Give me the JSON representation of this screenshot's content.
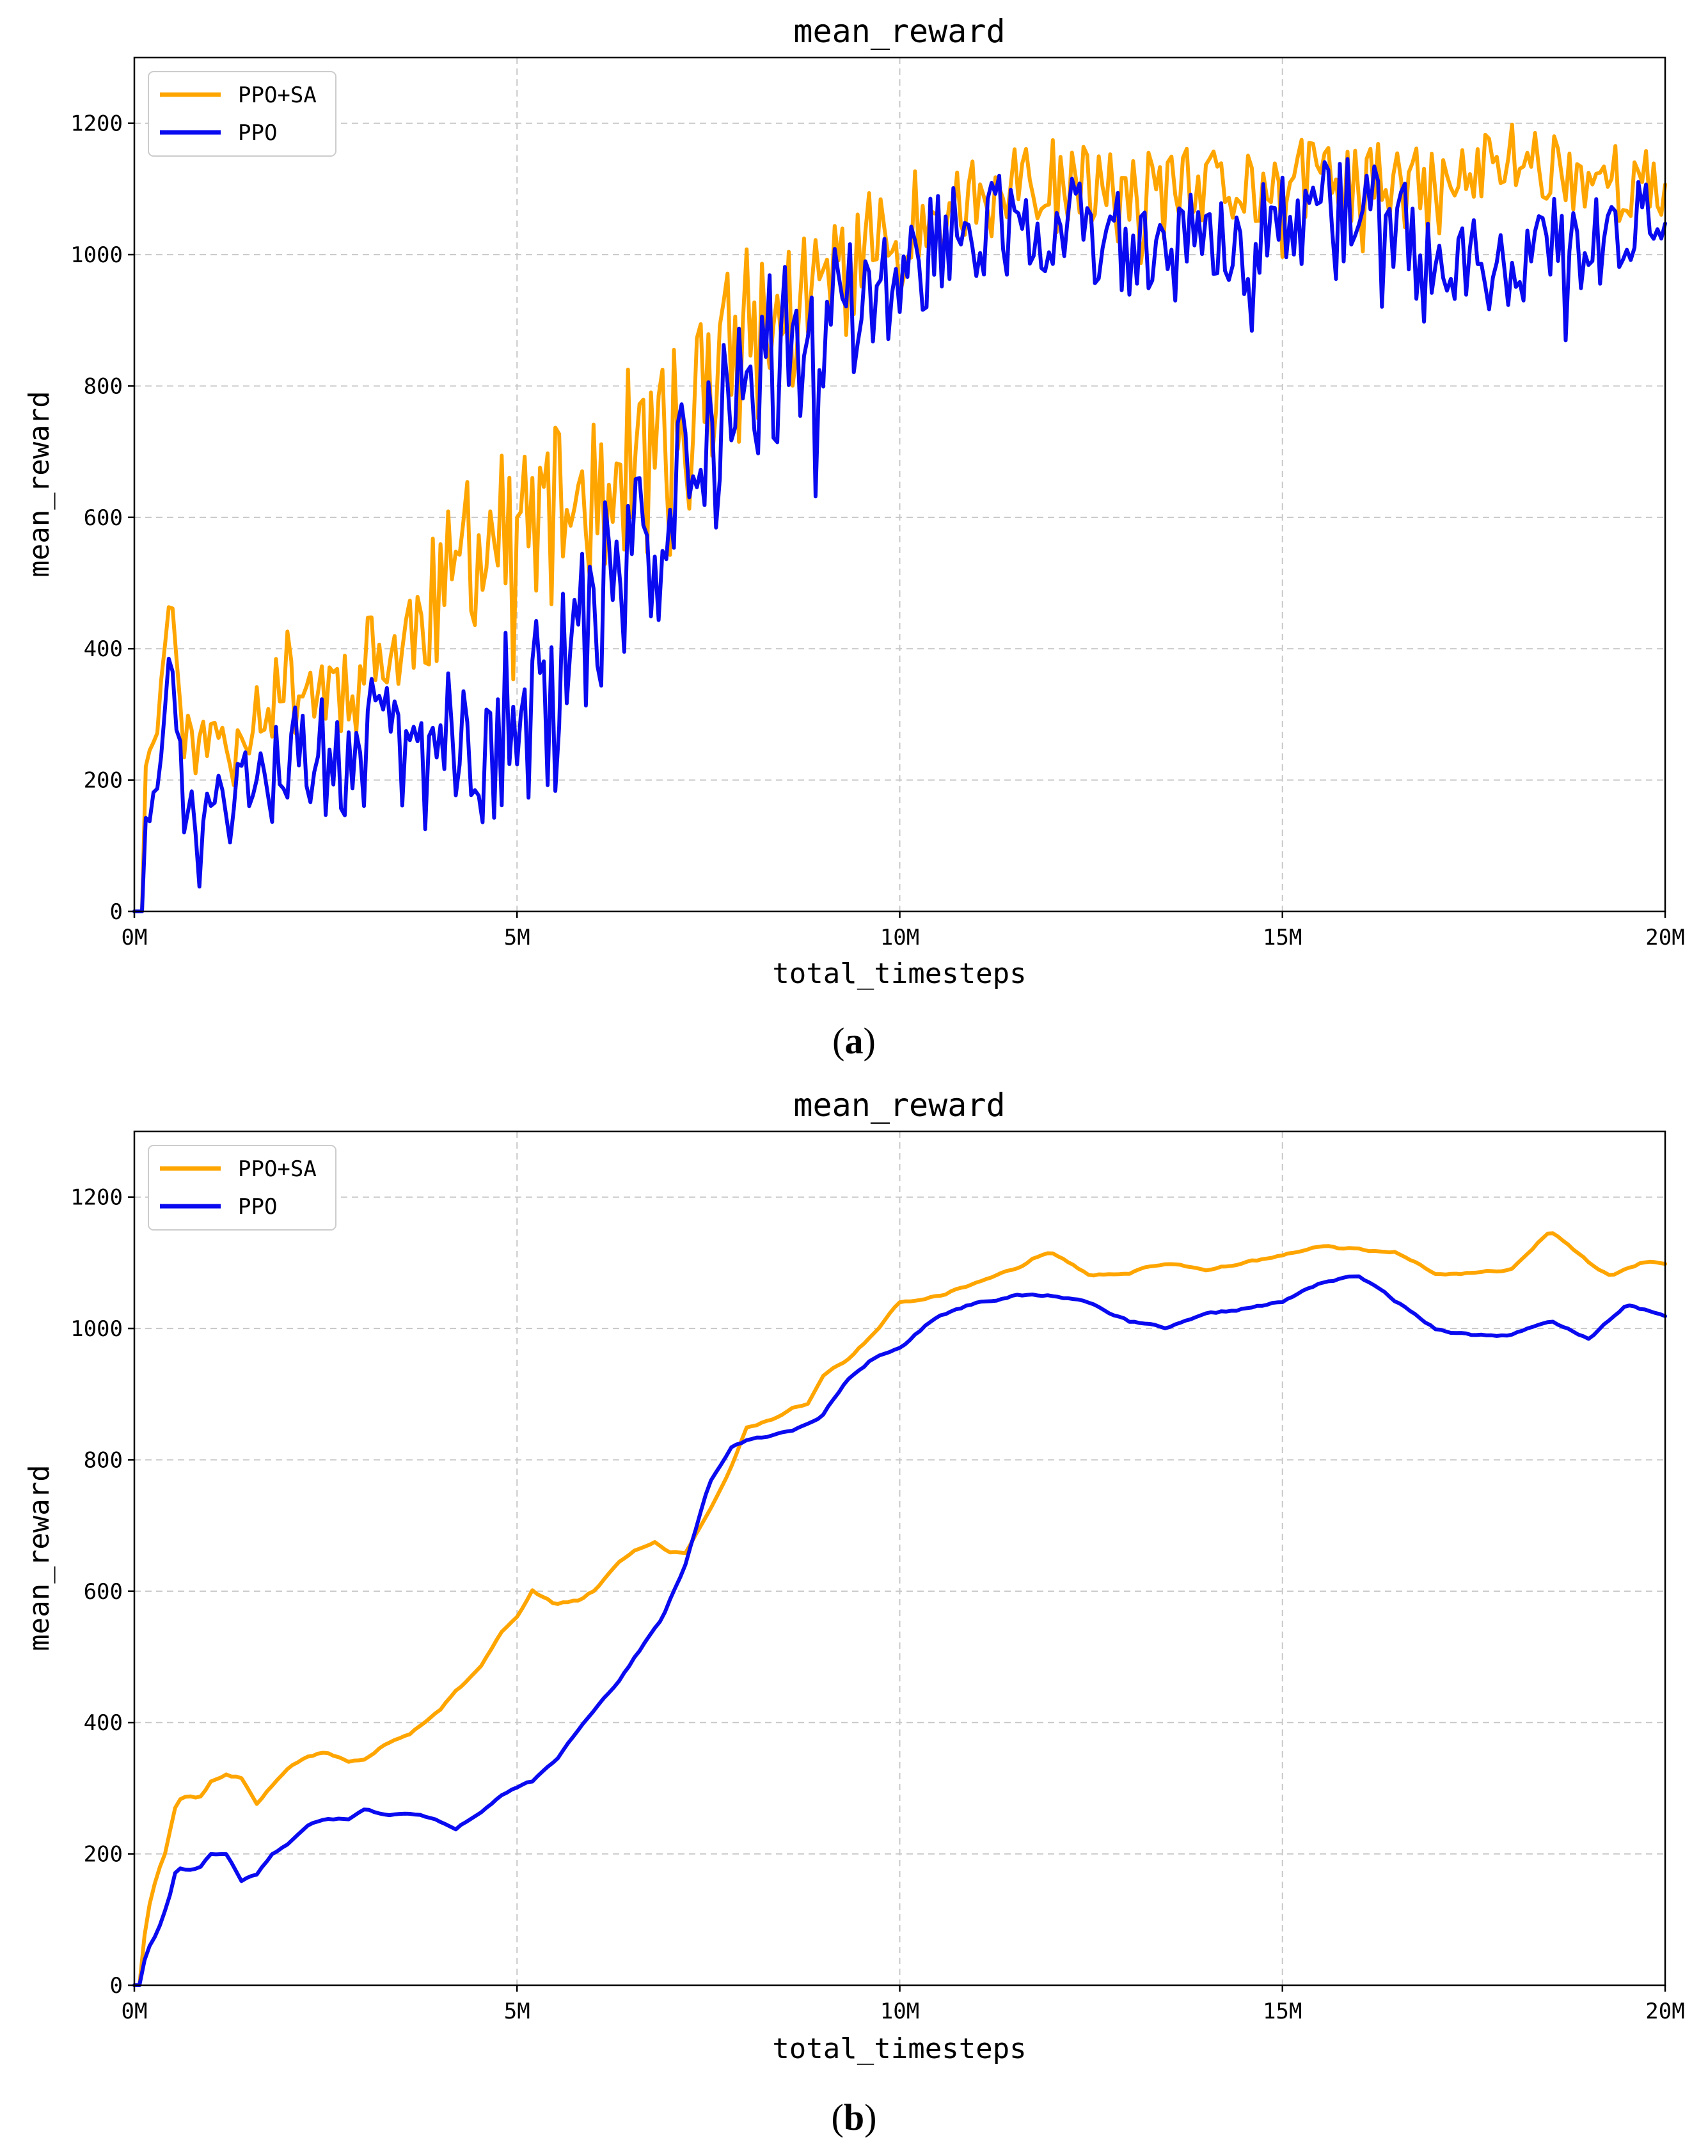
{
  "colors": {
    "ppo_sa": "#FFA500",
    "ppo": "#0A0AF0"
  },
  "chart_data": [
    {
      "type": "line",
      "panel_label": "a",
      "title": "mean_reward",
      "xlabel": "total_timesteps",
      "ylabel": "mean_reward",
      "xlim": [
        0,
        20
      ],
      "ylim": [
        0,
        1300
      ],
      "xticks": [
        0,
        5,
        10,
        15,
        20
      ],
      "xtick_labels": [
        "0M",
        "5M",
        "10M",
        "15M",
        "20M"
      ],
      "yticks": [
        0,
        200,
        400,
        600,
        800,
        1000,
        1200
      ],
      "ytick_labels": [
        "0",
        "200",
        "400",
        "600",
        "800",
        "1000",
        "1200"
      ],
      "grid": true,
      "legend_position": "top-left",
      "x_unit": "millions of timesteps",
      "series": [
        {
          "name": "PPO+SA",
          "color": "#FFA500",
          "style": "noisy",
          "seed": 11,
          "noise": [
            [
              0,
              20
            ],
            [
              2,
              80
            ],
            [
              5,
              130
            ],
            [
              7,
              160
            ],
            [
              9,
              120
            ],
            [
              10,
              80
            ],
            [
              20,
              60
            ]
          ],
          "x": [
            0,
            0.08,
            0.12,
            0.2,
            0.3,
            0.45,
            0.55,
            0.65,
            0.8,
            1.0,
            1.5,
            2.0,
            2.5,
            3.0,
            3.5,
            4.0,
            4.5,
            5.0,
            5.5,
            6.0,
            6.5,
            7.0,
            7.5,
            8.0,
            8.5,
            9.0,
            9.5,
            10.0,
            11.0,
            12.0,
            13.0,
            14.0,
            15.0,
            16.0,
            17.0,
            18.0,
            19.0,
            20.0
          ],
          "values": [
            0,
            0,
            180,
            260,
            280,
            470,
            420,
            270,
            250,
            260,
            300,
            350,
            340,
            360,
            400,
            480,
            560,
            580,
            600,
            650,
            680,
            690,
            800,
            870,
            900,
            960,
            1000,
            1040,
            1080,
            1100,
            1090,
            1090,
            1110,
            1110,
            1090,
            1150,
            1120,
            1100
          ]
        },
        {
          "name": "PPO",
          "color": "#0A0AF0",
          "style": "noisy",
          "seed": 29,
          "noise": [
            [
              0,
              20
            ],
            [
              2,
              90
            ],
            [
              5,
              150
            ],
            [
              7,
              150
            ],
            [
              9,
              130
            ],
            [
              10,
              90
            ],
            [
              20,
              80
            ]
          ],
          "x": [
            0,
            0.08,
            0.12,
            0.2,
            0.3,
            0.45,
            0.55,
            0.65,
            0.8,
            1.0,
            1.5,
            2.0,
            2.5,
            3.0,
            3.5,
            4.0,
            4.5,
            5.0,
            5.5,
            6.0,
            6.5,
            7.0,
            7.5,
            8.0,
            8.5,
            9.0,
            9.5,
            10.0,
            11.0,
            12.0,
            13.0,
            14.0,
            15.0,
            16.0,
            17.0,
            18.0,
            19.0,
            20.0
          ],
          "values": [
            0,
            0,
            110,
            150,
            160,
            380,
            300,
            160,
            130,
            150,
            180,
            220,
            240,
            260,
            240,
            250,
            270,
            290,
            320,
            460,
            520,
            610,
            780,
            820,
            850,
            880,
            920,
            980,
            1040,
            1050,
            1020,
            1010,
            1040,
            1080,
            990,
            990,
            1020,
            1040
          ]
        }
      ]
    },
    {
      "type": "line",
      "panel_label": "b",
      "title": "mean_reward",
      "xlabel": "total_timesteps",
      "ylabel": "mean_reward",
      "xlim": [
        0,
        20
      ],
      "ylim": [
        0,
        1300
      ],
      "xticks": [
        0,
        5,
        10,
        15,
        20
      ],
      "xtick_labels": [
        "0M",
        "5M",
        "10M",
        "15M",
        "20M"
      ],
      "yticks": [
        0,
        200,
        400,
        600,
        800,
        1000,
        1200
      ],
      "ytick_labels": [
        "0",
        "200",
        "400",
        "600",
        "800",
        "1000",
        "1200"
      ],
      "grid": true,
      "legend_position": "top-left",
      "x_unit": "millions of timesteps",
      "series": [
        {
          "name": "PPO+SA",
          "color": "#FFA500",
          "style": "smooth",
          "seed": 5,
          "noise": [
            [
              0,
              0
            ],
            [
              1,
              5
            ],
            [
              20,
              5
            ]
          ],
          "x": [
            0,
            0.08,
            0.15,
            0.3,
            0.4,
            0.55,
            0.7,
            0.85,
            1.0,
            1.2,
            1.4,
            1.6,
            2.0,
            2.2,
            2.5,
            2.8,
            3.0,
            3.3,
            3.6,
            4.0,
            4.2,
            4.5,
            4.8,
            5.0,
            5.2,
            5.5,
            5.8,
            6.0,
            6.3,
            6.5,
            6.8,
            7.0,
            7.2,
            7.5,
            7.8,
            8.0,
            8.3,
            8.6,
            8.8,
            9.0,
            9.3,
            9.6,
            10.0,
            10.5,
            11.0,
            11.5,
            11.8,
            12.0,
            12.5,
            13.0,
            13.5,
            14.0,
            14.5,
            15.0,
            15.5,
            16.0,
            16.5,
            17.0,
            17.5,
            18.0,
            18.5,
            19.0,
            19.3,
            19.7,
            20.0
          ],
          "values": [
            0,
            0,
            100,
            170,
            200,
            280,
            290,
            285,
            310,
            320,
            315,
            275,
            330,
            345,
            355,
            340,
            345,
            370,
            385,
            420,
            450,
            480,
            540,
            560,
            600,
            580,
            585,
            600,
            640,
            660,
            675,
            660,
            660,
            720,
            790,
            850,
            860,
            880,
            885,
            930,
            950,
            985,
            1040,
            1050,
            1070,
            1090,
            1110,
            1115,
            1080,
            1085,
            1100,
            1090,
            1100,
            1110,
            1125,
            1120,
            1115,
            1085,
            1085,
            1090,
            1150,
            1100,
            1080,
            1100,
            1100
          ]
        },
        {
          "name": "PPO",
          "color": "#0A0AF0",
          "style": "smooth",
          "seed": 17,
          "noise": [
            [
              0,
              0
            ],
            [
              1,
              5
            ],
            [
              20,
              5
            ]
          ],
          "x": [
            0,
            0.08,
            0.15,
            0.3,
            0.45,
            0.55,
            0.7,
            0.85,
            1.0,
            1.2,
            1.4,
            1.6,
            1.8,
            2.0,
            2.3,
            2.5,
            2.8,
            3.0,
            3.3,
            3.6,
            3.9,
            4.2,
            4.5,
            4.8,
            5.0,
            5.2,
            5.5,
            5.8,
            6.0,
            6.3,
            6.6,
            6.9,
            7.2,
            7.5,
            7.8,
            8.0,
            8.3,
            8.6,
            9.0,
            9.3,
            9.6,
            10.0,
            10.5,
            11.0,
            11.5,
            12.0,
            12.5,
            13.0,
            13.5,
            14.0,
            14.5,
            15.0,
            15.5,
            16.0,
            16.5,
            17.0,
            17.5,
            18.0,
            18.5,
            19.0,
            19.5,
            20.0
          ],
          "values": [
            0,
            0,
            50,
            80,
            130,
            180,
            175,
            180,
            200,
            200,
            160,
            170,
            200,
            215,
            245,
            255,
            255,
            270,
            260,
            260,
            255,
            240,
            260,
            290,
            300,
            310,
            340,
            390,
            420,
            460,
            510,
            560,
            640,
            760,
            820,
            830,
            835,
            845,
            870,
            920,
            950,
            970,
            1020,
            1040,
            1050,
            1050,
            1040,
            1010,
            1000,
            1020,
            1030,
            1040,
            1070,
            1080,
            1040,
            1000,
            990,
            990,
            1010,
            985,
            1035,
            1020
          ]
        }
      ]
    }
  ]
}
